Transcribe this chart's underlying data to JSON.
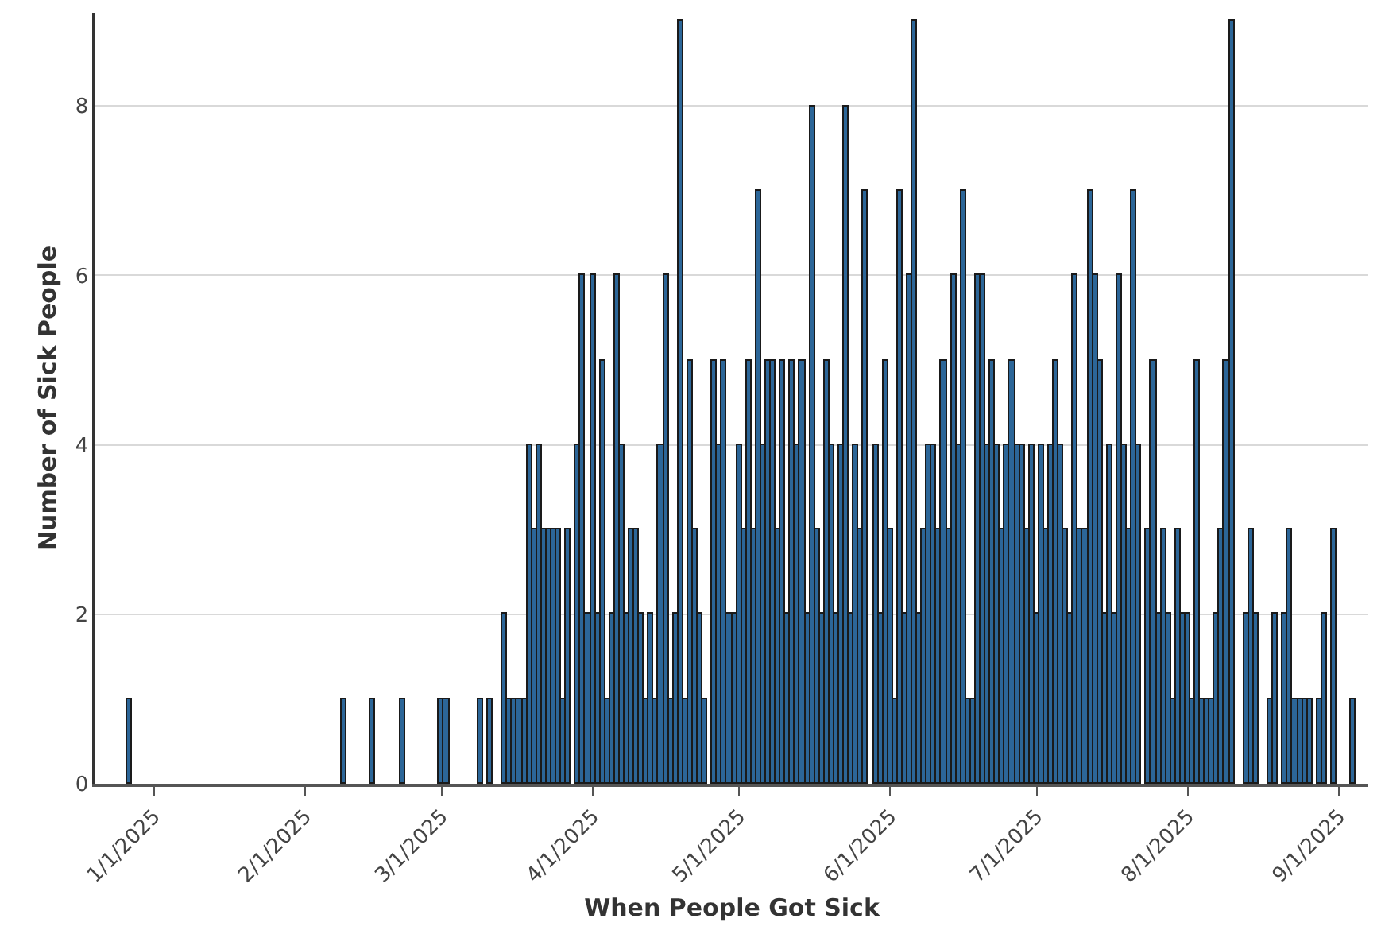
{
  "chart_data": {
    "type": "bar",
    "xlabel": "When People Got Sick",
    "ylabel": "Number of Sick People",
    "x": [
      "2024-12-27",
      "2025-02-09",
      "2025-02-15",
      "2025-02-21",
      "2025-03-01",
      "2025-03-02",
      "2025-03-09",
      "2025-03-11",
      "2025-03-14",
      "2025-03-15",
      "2025-03-16",
      "2025-03-17",
      "2025-03-18",
      "2025-03-19",
      "2025-03-20",
      "2025-03-21",
      "2025-03-22",
      "2025-03-23",
      "2025-03-24",
      "2025-03-25",
      "2025-03-26",
      "2025-03-27",
      "2025-03-29",
      "2025-03-30",
      "2025-03-31",
      "2025-04-01",
      "2025-04-02",
      "2025-04-03",
      "2025-04-04",
      "2025-04-05",
      "2025-04-06",
      "2025-04-07",
      "2025-04-08",
      "2025-04-09",
      "2025-04-10",
      "2025-04-11",
      "2025-04-12",
      "2025-04-13",
      "2025-04-14",
      "2025-04-15",
      "2025-04-16",
      "2025-04-17",
      "2025-04-18",
      "2025-04-19",
      "2025-04-20",
      "2025-04-21",
      "2025-04-22",
      "2025-04-23",
      "2025-04-24",
      "2025-04-26",
      "2025-04-27",
      "2025-04-28",
      "2025-04-29",
      "2025-04-30",
      "2025-05-01",
      "2025-05-02",
      "2025-05-03",
      "2025-05-04",
      "2025-05-05",
      "2025-05-06",
      "2025-05-07",
      "2025-05-08",
      "2025-05-09",
      "2025-05-10",
      "2025-05-11",
      "2025-05-12",
      "2025-05-13",
      "2025-05-14",
      "2025-05-15",
      "2025-05-16",
      "2025-05-17",
      "2025-05-18",
      "2025-05-19",
      "2025-05-20",
      "2025-05-21",
      "2025-05-22",
      "2025-05-23",
      "2025-05-24",
      "2025-05-25",
      "2025-05-26",
      "2025-05-27",
      "2025-05-29",
      "2025-05-30",
      "2025-05-31",
      "2025-06-01",
      "2025-06-02",
      "2025-06-03",
      "2025-06-04",
      "2025-06-05",
      "2025-06-06",
      "2025-06-07",
      "2025-06-08",
      "2025-06-09",
      "2025-06-10",
      "2025-06-11",
      "2025-06-12",
      "2025-06-13",
      "2025-06-14",
      "2025-06-15",
      "2025-06-16",
      "2025-06-17",
      "2025-06-18",
      "2025-06-19",
      "2025-06-20",
      "2025-06-21",
      "2025-06-22",
      "2025-06-23",
      "2025-06-24",
      "2025-06-25",
      "2025-06-26",
      "2025-06-27",
      "2025-06-28",
      "2025-06-29",
      "2025-06-30",
      "2025-07-01",
      "2025-07-02",
      "2025-07-03",
      "2025-07-04",
      "2025-07-05",
      "2025-07-06",
      "2025-07-07",
      "2025-07-08",
      "2025-07-09",
      "2025-07-10",
      "2025-07-11",
      "2025-07-12",
      "2025-07-13",
      "2025-07-14",
      "2025-07-15",
      "2025-07-16",
      "2025-07-17",
      "2025-07-18",
      "2025-07-19",
      "2025-07-20",
      "2025-07-21",
      "2025-07-22",
      "2025-07-24",
      "2025-07-25",
      "2025-07-26",
      "2025-07-27",
      "2025-07-28",
      "2025-07-29",
      "2025-07-30",
      "2025-07-31",
      "2025-08-01",
      "2025-08-02",
      "2025-08-03",
      "2025-08-04",
      "2025-08-05",
      "2025-08-06",
      "2025-08-07",
      "2025-08-08",
      "2025-08-09",
      "2025-08-10",
      "2025-08-13",
      "2025-08-14",
      "2025-08-15",
      "2025-08-18",
      "2025-08-19",
      "2025-08-21",
      "2025-08-22",
      "2025-08-23",
      "2025-08-24",
      "2025-08-25",
      "2025-08-26",
      "2025-08-28",
      "2025-08-29",
      "2025-08-31",
      "2025-09-04"
    ],
    "values": [
      1,
      1,
      1,
      1,
      1,
      1,
      1,
      1,
      2,
      1,
      1,
      1,
      1,
      4,
      3,
      4,
      3,
      3,
      3,
      3,
      1,
      3,
      4,
      6,
      2,
      6,
      2,
      5,
      1,
      2,
      6,
      4,
      2,
      3,
      3,
      2,
      1,
      2,
      1,
      4,
      6,
      1,
      2,
      9,
      1,
      5,
      3,
      2,
      1,
      5,
      4,
      5,
      2,
      2,
      4,
      3,
      5,
      3,
      7,
      4,
      5,
      5,
      3,
      5,
      2,
      5,
      4,
      5,
      2,
      8,
      3,
      2,
      5,
      4,
      2,
      4,
      8,
      2,
      4,
      3,
      7,
      4,
      2,
      5,
      3,
      1,
      7,
      2,
      6,
      9,
      2,
      3,
      4,
      4,
      3,
      5,
      3,
      6,
      4,
      7,
      1,
      1,
      6,
      6,
      4,
      5,
      4,
      3,
      4,
      5,
      4,
      4,
      3,
      4,
      2,
      4,
      3,
      4,
      5,
      4,
      3,
      2,
      6,
      3,
      3,
      7,
      6,
      5,
      2,
      4,
      2,
      6,
      4,
      3,
      7,
      4,
      3,
      5,
      2,
      3,
      2,
      1,
      3,
      2,
      2,
      1,
      5,
      1,
      1,
      1,
      2,
      3,
      5,
      9,
      2,
      3,
      2,
      1,
      2,
      2,
      3,
      1,
      1,
      1,
      1,
      1,
      2,
      3,
      1
    ],
    "color": "#2c6698",
    "xlim": [
      "2024-12-20",
      "2025-09-07"
    ],
    "xticks": [
      {
        "value": "2025-01-01",
        "label": "1/1/2025"
      },
      {
        "value": "2025-02-01",
        "label": "2/1/2025"
      },
      {
        "value": "2025-03-01",
        "label": "3/1/2025"
      },
      {
        "value": "2025-04-01",
        "label": "4/1/2025"
      },
      {
        "value": "2025-05-01",
        "label": "5/1/2025"
      },
      {
        "value": "2025-06-01",
        "label": "6/1/2025"
      },
      {
        "value": "2025-07-01",
        "label": "7/1/2025"
      },
      {
        "value": "2025-08-01",
        "label": "8/1/2025"
      },
      {
        "value": "2025-09-01",
        "label": "9/1/2025"
      }
    ],
    "ylim": [
      0,
      9.1
    ],
    "yticks": [
      0,
      2,
      4,
      6,
      8
    ],
    "grid": "y"
  }
}
